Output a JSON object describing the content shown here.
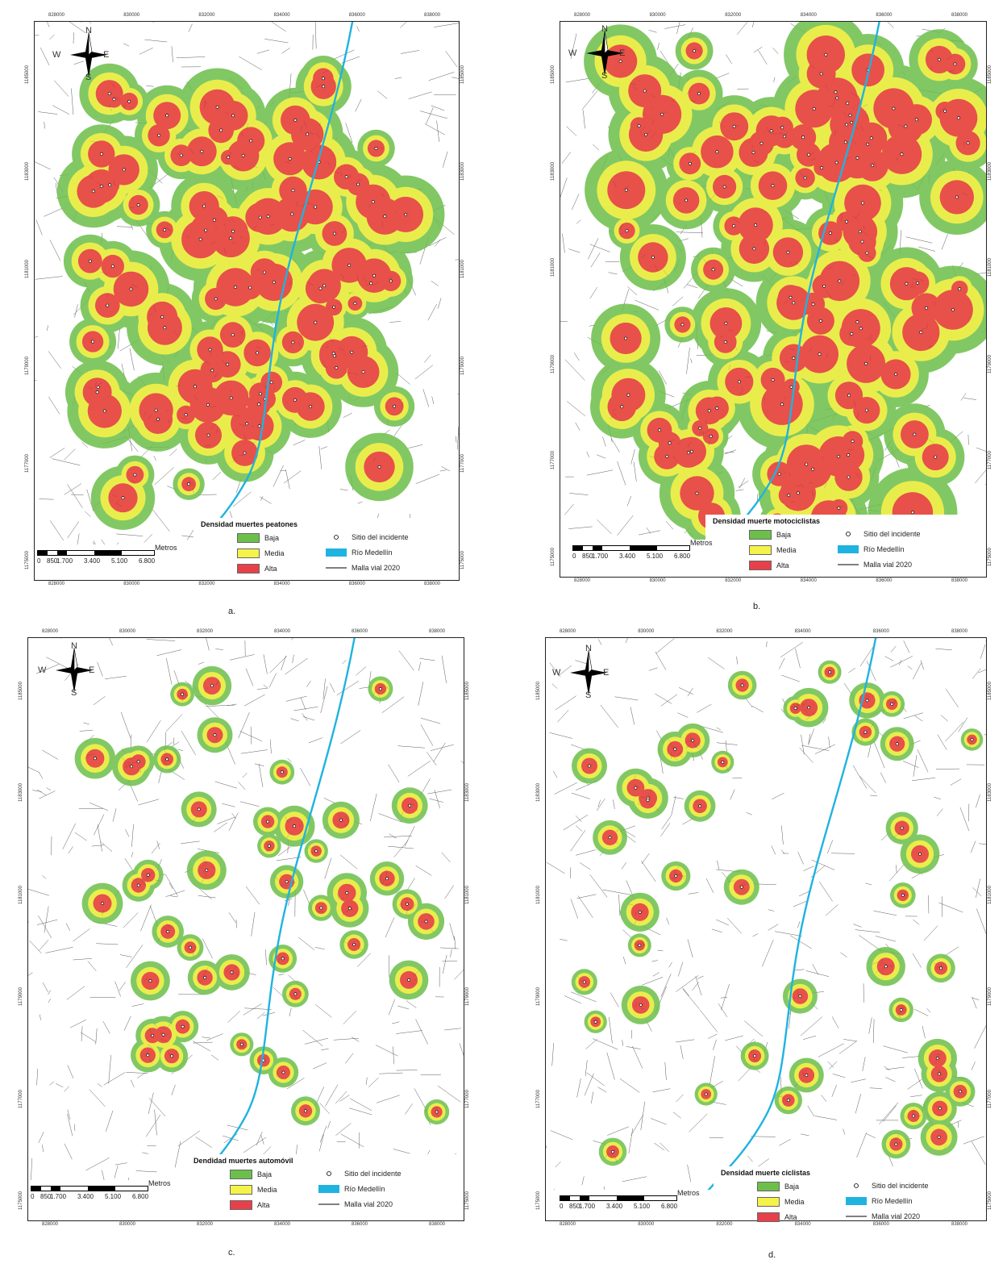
{
  "panels": [
    {
      "id": "a",
      "caption": "a.",
      "legend_title": "Densidad muertes peatones",
      "top_ticks": [
        "828000",
        "830000",
        "832000",
        "834000",
        "836000",
        "838000"
      ],
      "bottom_ticks": [
        "828000",
        "830000",
        "832000",
        "834000",
        "836000",
        "838000"
      ],
      "left_ticks": [
        "1185000",
        "1183000",
        "1181000",
        "1179000",
        "1177000",
        "1175000"
      ],
      "right_ticks": [
        "1185000",
        "1183000",
        "1181000",
        "1179000",
        "1177000",
        "1175000"
      ],
      "scale_labels": [
        "0",
        "850",
        "1.700",
        "3.400",
        "5.100",
        "6.800"
      ],
      "scale_unit": "Metros",
      "pattern": "dense"
    },
    {
      "id": "b",
      "caption": "b.",
      "legend_title": "Densidad muerte motociclistas",
      "top_ticks": [
        "828000",
        "830000",
        "832000",
        "834000",
        "836000",
        "838000"
      ],
      "bottom_ticks": [
        "828000",
        "830000",
        "832000",
        "834000",
        "836000",
        "838000"
      ],
      "left_ticks": [
        "1185000",
        "1183000",
        "1181000",
        "1179000",
        "1177000",
        "1175000"
      ],
      "right_ticks": [
        "1185000",
        "1183000",
        "1181000",
        "1179000",
        "1177000",
        "1175000"
      ],
      "scale_labels": [
        "0",
        "850",
        "1.700",
        "3.400",
        "5.100",
        "6.800"
      ],
      "scale_unit": "Metros",
      "pattern": "very-dense"
    },
    {
      "id": "c",
      "caption": "c.",
      "legend_title": "Dendidad muertes automóvil",
      "top_ticks": [
        "828000",
        "830000",
        "832000",
        "834000",
        "836000",
        "838000"
      ],
      "bottom_ticks": [
        "828000",
        "830000",
        "832000",
        "834000",
        "836000",
        "838000"
      ],
      "left_ticks": [
        "1185000",
        "1183000",
        "1181000",
        "1179000",
        "1177000",
        "1175000"
      ],
      "right_ticks": [
        "1185000",
        "1183000",
        "1181000",
        "1179000",
        "1177000",
        "1175000"
      ],
      "scale_labels": [
        "0",
        "850",
        "1.700",
        "3.400",
        "5.100",
        "6.800"
      ],
      "scale_unit": "Metros",
      "pattern": "clusters"
    },
    {
      "id": "d",
      "caption": "d.",
      "legend_title": "Densidad muerte ciclistas",
      "top_ticks": [
        "828000",
        "830000",
        "832000",
        "834000",
        "836000",
        "838000"
      ],
      "bottom_ticks": [
        "828000",
        "830000",
        "832000",
        "834000",
        "836000",
        "838000"
      ],
      "left_ticks": [
        "1185000",
        "1183000",
        "1181000",
        "1179000",
        "1177000",
        "1175000"
      ],
      "right_ticks": [
        "1185000",
        "1183000",
        "1181000",
        "1179000",
        "1177000",
        "1175000"
      ],
      "scale_labels": [
        "0",
        "850",
        "1.700",
        "3.400",
        "5.100",
        "6.800"
      ],
      "scale_unit": "Metros",
      "pattern": "sparse"
    }
  ],
  "legend": {
    "baja": "Baja",
    "media": "Media",
    "alta": "Alta",
    "sitio": "Sitio del incidente",
    "rio": "Río Medellín",
    "malla": "Malla vial 2020"
  },
  "compass": {
    "n": "N",
    "s": "S",
    "e": "E",
    "w": "W"
  },
  "colors": {
    "baja": "#6cbf4a",
    "media": "#f5f24a",
    "alta": "#e8404a",
    "river": "#1fb3e0",
    "roads": "#333333"
  }
}
